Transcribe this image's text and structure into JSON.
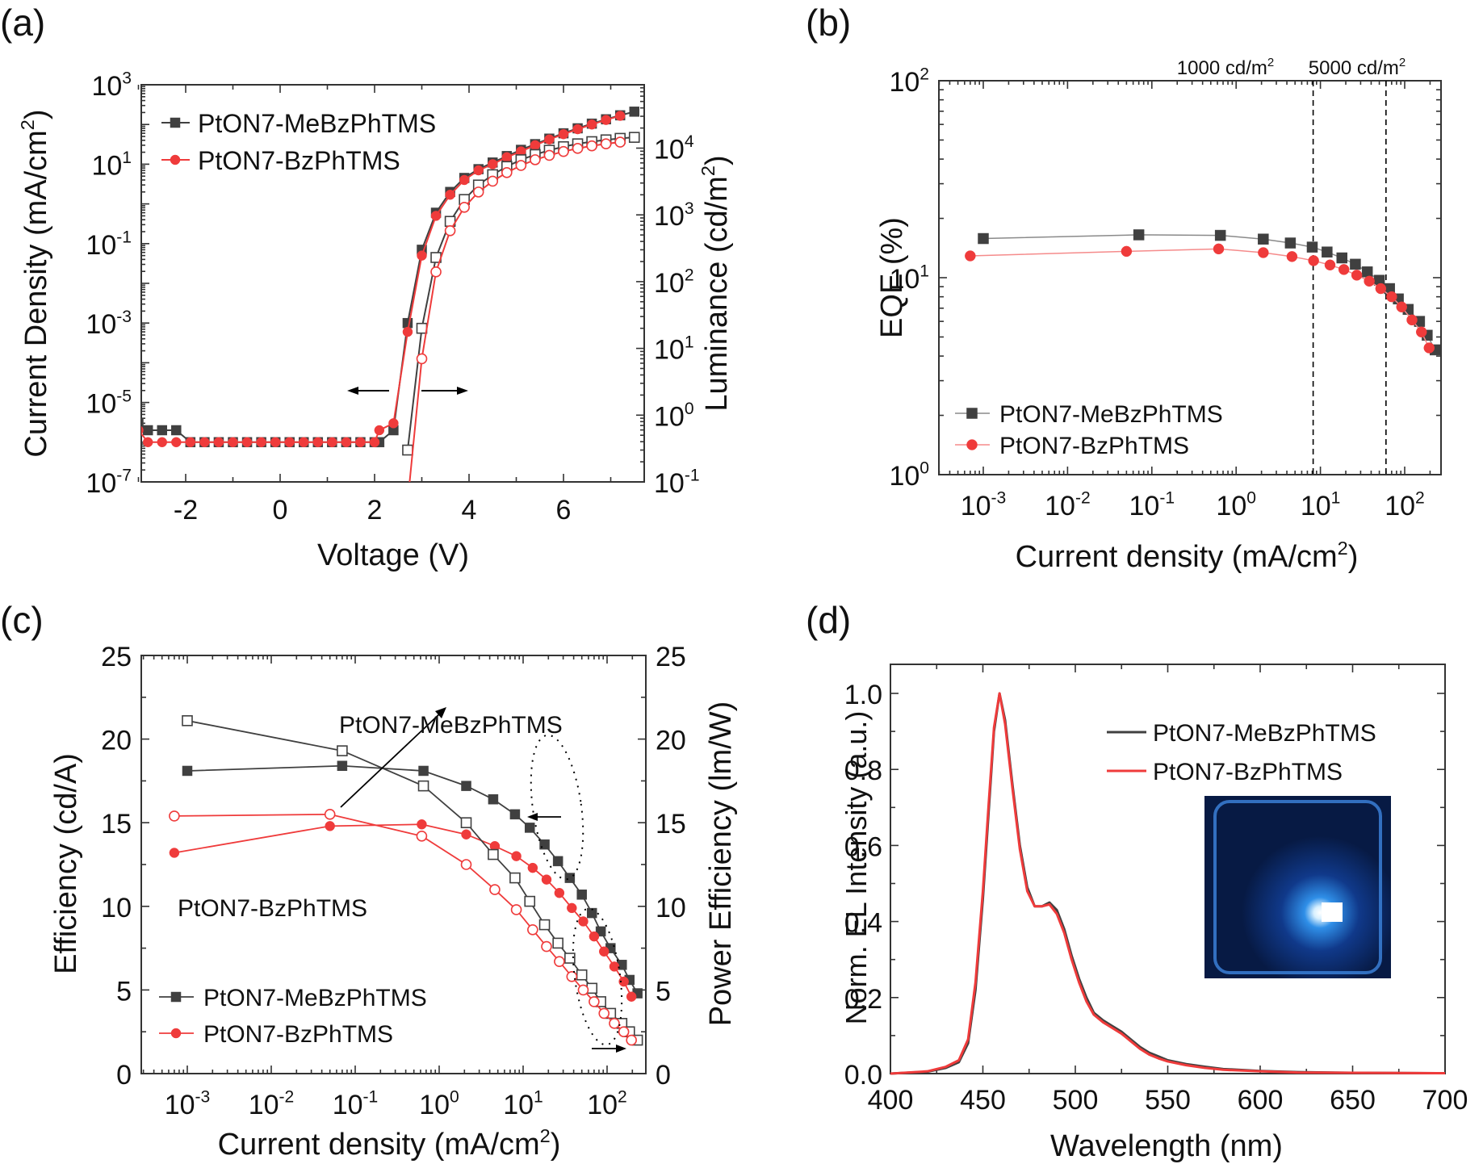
{
  "colors": {
    "black_series": "#404040",
    "red_series": "#ef3b3b",
    "axis": "#333333"
  },
  "chart_data": [
    {
      "panel": "(a)",
      "type": "line",
      "title": "",
      "xlabel": "Voltage (V)",
      "ylabel": "Current Density (mA/cm2)",
      "ylabel_right": "Luminance (cd/m2)",
      "xlim": [
        -3,
        7.7
      ],
      "ylim": [
        1e-07,
        1000.0
      ],
      "ylim_right": [
        0.1,
        100000.0
      ],
      "yscale": "log",
      "xticks": [
        -2,
        0,
        2,
        4,
        6
      ],
      "yticks": [
        {
          "base": "10",
          "exp": "3"
        },
        {
          "base": "10",
          "exp": "1"
        },
        {
          "base": "10",
          "exp": "-1"
        },
        {
          "base": "10",
          "exp": "-3"
        },
        {
          "base": "10",
          "exp": "-5"
        },
        {
          "base": "10",
          "exp": "-7"
        }
      ],
      "yticks_right": [
        {
          "base": "10",
          "exp": "4"
        },
        {
          "base": "10",
          "exp": "3"
        },
        {
          "base": "10",
          "exp": "2"
        },
        {
          "base": "10",
          "exp": "1"
        },
        {
          "base": "10",
          "exp": "0"
        },
        {
          "base": "10",
          "exp": "-1"
        }
      ],
      "legend": [
        "PtON7-MeBzPhTMS",
        "PtON7-BzPhTMS"
      ],
      "legend_position": "top-left",
      "annotations": [
        "left arrow: current density axis",
        "right arrow: luminance axis"
      ],
      "series": [
        {
          "name": "PtON7-MeBzPhTMS J",
          "axis": "left",
          "marker": "square-filled",
          "color": "black",
          "x": [
            -3,
            -2.8,
            -2.5,
            -2.2,
            -1.9,
            -1.6,
            -1.3,
            -1.0,
            -0.7,
            -0.4,
            -0.1,
            0.2,
            0.5,
            0.8,
            1.1,
            1.4,
            1.7,
            2.0,
            2.1,
            2.4,
            2.7,
            3.0,
            3.3,
            3.6,
            3.9,
            4.2,
            4.5,
            4.8,
            5.1,
            5.4,
            5.7,
            6.0,
            6.3,
            6.6,
            6.9,
            7.2,
            7.5
          ],
          "y": [
            3e-06,
            2e-06,
            2e-06,
            2e-06,
            1e-06,
            1e-06,
            1e-06,
            1e-06,
            1e-06,
            1e-06,
            1e-06,
            1e-06,
            1e-06,
            1e-06,
            1e-06,
            1e-06,
            1e-06,
            1e-06,
            1e-06,
            2e-06,
            0.001,
            0.07,
            0.6,
            2.0,
            4.5,
            7.5,
            11,
            16,
            23,
            32,
            44,
            60,
            80,
            105,
            135,
            170,
            210
          ]
        },
        {
          "name": "PtON7-BzPhTMS J",
          "axis": "left",
          "marker": "circle-filled",
          "color": "red",
          "x": [
            -3,
            -2.8,
            -2.5,
            -2.2,
            -1.9,
            -1.6,
            -1.3,
            -1.0,
            -0.7,
            -0.4,
            -0.1,
            0.2,
            0.5,
            0.8,
            1.1,
            1.4,
            1.7,
            2.0,
            2.1,
            2.4,
            2.7,
            3.0,
            3.3,
            3.6,
            3.9,
            4.2,
            4.5,
            4.8,
            5.1,
            5.4,
            5.7,
            6.0,
            6.3,
            6.6,
            6.9,
            7.2
          ],
          "y": [
            2e-06,
            1e-06,
            1e-06,
            1e-06,
            1e-06,
            1e-06,
            1e-06,
            1e-06,
            1e-06,
            1e-06,
            1e-06,
            1e-06,
            1e-06,
            1e-06,
            1e-06,
            1e-06,
            1e-06,
            1e-06,
            2e-06,
            3e-06,
            0.0006,
            0.05,
            0.5,
            1.7,
            4.0,
            7.0,
            10,
            15,
            21,
            30,
            42,
            57,
            76,
            100,
            130,
            165
          ]
        },
        {
          "name": "PtON7-MeBzPhTMS L",
          "axis": "right",
          "marker": "square-open",
          "color": "black",
          "x": [
            2.7,
            3.0,
            3.3,
            3.6,
            3.9,
            4.2,
            4.5,
            4.8,
            5.1,
            5.4,
            5.7,
            6.0,
            6.3,
            6.6,
            6.9,
            7.2,
            7.5
          ],
          "y": [
            0.3,
            20,
            230,
            800,
            1700,
            2800,
            4000,
            5300,
            6700,
            8000,
            9300,
            10500,
            11600,
            12500,
            13300,
            14000,
            14500
          ]
        },
        {
          "name": "PtON7-BzPhTMS L",
          "axis": "right",
          "marker": "circle-open",
          "color": "red",
          "x": [
            2.7,
            3.0,
            3.3,
            3.6,
            3.9,
            4.2,
            4.5,
            4.8,
            5.1,
            5.4,
            5.7,
            6.0,
            6.3,
            6.6,
            6.9,
            7.2
          ],
          "y": [
            0.05,
            7,
            140,
            580,
            1300,
            2200,
            3200,
            4300,
            5500,
            6700,
            7800,
            8900,
            9900,
            10800,
            11600,
            12300
          ]
        }
      ]
    },
    {
      "panel": "(b)",
      "type": "scatter",
      "xlabel": "Current density (mA/cm2)",
      "ylabel": "EQE (%)",
      "xscale": "log",
      "yscale": "log",
      "xlim": [
        0.0003,
        270
      ],
      "ylim": [
        1,
        100
      ],
      "xticks": [
        {
          "base": "10",
          "exp": "-3"
        },
        {
          "base": "10",
          "exp": "-2"
        },
        {
          "base": "10",
          "exp": "-1"
        },
        {
          "base": "10",
          "exp": "0"
        },
        {
          "base": "10",
          "exp": "1"
        },
        {
          "base": "10",
          "exp": "2"
        }
      ],
      "yticks": [
        {
          "base": "10",
          "exp": "2"
        },
        {
          "base": "10",
          "exp": "1"
        },
        {
          "base": "10",
          "exp": "0"
        }
      ],
      "reference_lines": [
        {
          "x": 8.2,
          "label": "1000 cd/m",
          "sup": "2"
        },
        {
          "x": 60,
          "label": "5000 cd/m",
          "sup": "2"
        }
      ],
      "legend": [
        "PtON7-MeBzPhTMS",
        "PtON7-BzPhTMS"
      ],
      "legend_position": "bottom-left",
      "series": [
        {
          "name": "PtON7-MeBzPhTMS",
          "marker": "square-filled",
          "color": "black",
          "x": [
            0.001,
            0.07,
            0.65,
            2.1,
            4.4,
            8.0,
            12,
            18,
            26,
            36,
            50,
            66,
            84,
            110,
            150,
            185,
            230
          ],
          "y": [
            15.8,
            16.5,
            16.4,
            15.7,
            15.0,
            14.3,
            13.5,
            12.6,
            11.7,
            10.7,
            9.7,
            8.8,
            7.8,
            6.9,
            6.0,
            5.1,
            4.3
          ]
        },
        {
          "name": "PtON7-BzPhTMS",
          "marker": "circle-filled",
          "color": "red",
          "x": [
            0.0007,
            0.05,
            0.62,
            2.1,
            4.6,
            8.3,
            13,
            19,
            27,
            38,
            52,
            70,
            92,
            122,
            158,
            195
          ],
          "y": [
            12.9,
            13.6,
            14.0,
            13.4,
            12.8,
            12.2,
            11.6,
            11.0,
            10.3,
            9.6,
            8.8,
            8.0,
            7.1,
            6.1,
            5.3,
            4.4
          ]
        }
      ]
    },
    {
      "panel": "(c)",
      "type": "line",
      "xlabel": "Current density (mA/cm2)",
      "ylabel": "Efficiency (cd/A)",
      "ylabel_right": "Power Efficiency (lm/W)",
      "xscale": "log",
      "xlim": [
        0.0003,
        270
      ],
      "ylim": [
        0,
        25
      ],
      "ylim_right": [
        0,
        25
      ],
      "xticks": [
        {
          "base": "10",
          "exp": "-3"
        },
        {
          "base": "10",
          "exp": "-2"
        },
        {
          "base": "10",
          "exp": "-1"
        },
        {
          "base": "10",
          "exp": "0"
        },
        {
          "base": "10",
          "exp": "1"
        },
        {
          "base": "10",
          "exp": "2"
        }
      ],
      "yticks": [
        "0",
        "5",
        "10",
        "15",
        "20",
        "25"
      ],
      "yticks_right": [
        "0",
        "5",
        "10",
        "15",
        "20",
        "25"
      ],
      "legend": [
        "PtON7-MeBzPhTMS",
        "PtON7-BzPhTMS"
      ],
      "legend_position": "bottom-left",
      "annotations": [
        {
          "text": "PtON7-MeBzPhTMS",
          "type": "label-top"
        },
        {
          "text": "PtON7-BzPhTMS",
          "type": "label-bottom"
        }
      ],
      "series": [
        {
          "name": "PtON7-MeBzPhTMS CE",
          "axis": "left",
          "marker": "square-filled",
          "color": "black",
          "x": [
            0.001,
            0.07,
            0.65,
            2.1,
            4.4,
            8.0,
            12,
            18,
            26,
            36,
            50,
            66,
            84,
            110,
            150,
            185,
            230
          ],
          "y": [
            18.1,
            18.4,
            18.1,
            17.2,
            16.4,
            15.5,
            14.7,
            13.7,
            12.7,
            11.7,
            10.7,
            9.6,
            8.5,
            7.5,
            6.5,
            5.6,
            4.8
          ]
        },
        {
          "name": "PtON7-BzPhTMS CE",
          "axis": "left",
          "marker": "circle-filled",
          "color": "red",
          "x": [
            0.0007,
            0.05,
            0.62,
            2.1,
            4.6,
            8.3,
            13,
            19,
            27,
            38,
            52,
            70,
            92,
            122,
            158,
            195
          ],
          "y": [
            13.2,
            14.8,
            14.9,
            14.3,
            13.6,
            13.0,
            12.3,
            11.6,
            10.8,
            9.9,
            9.1,
            8.2,
            7.3,
            6.4,
            5.5,
            4.6
          ]
        },
        {
          "name": "PtON7-MeBzPhTMS PE",
          "axis": "right",
          "marker": "square-open",
          "color": "black",
          "x": [
            0.001,
            0.07,
            0.65,
            2.1,
            4.4,
            8.0,
            12,
            18,
            26,
            36,
            50,
            66,
            84,
            110,
            150,
            185,
            230
          ],
          "y": [
            21.1,
            19.3,
            17.2,
            15.0,
            13.1,
            11.7,
            10.3,
            8.9,
            7.8,
            6.9,
            5.9,
            5.1,
            4.3,
            3.6,
            3.0,
            2.5,
            2.0
          ]
        },
        {
          "name": "PtON7-BzPhTMS PE",
          "axis": "right",
          "marker": "circle-open",
          "color": "red",
          "x": [
            0.0007,
            0.05,
            0.62,
            2.1,
            4.6,
            8.3,
            13,
            19,
            27,
            38,
            52,
            70,
            92,
            122,
            158,
            195
          ],
          "y": [
            15.4,
            15.5,
            14.2,
            12.5,
            11.0,
            9.8,
            8.6,
            7.6,
            6.7,
            5.8,
            5.0,
            4.3,
            3.6,
            3.0,
            2.5,
            2.0
          ]
        }
      ]
    },
    {
      "panel": "(d)",
      "type": "line",
      "xlabel": "Wavelength (nm)",
      "ylabel": "Norm. EL Intensity (a.u.)",
      "xlim": [
        400,
        700
      ],
      "ylim": [
        0,
        1.08
      ],
      "xticks": [
        "400",
        "450",
        "500",
        "550",
        "600",
        "650",
        "700"
      ],
      "yticks": [
        "0.0",
        "0.2",
        "0.4",
        "0.6",
        "0.8",
        "1.0"
      ],
      "legend": [
        "PtON7-MeBzPhTMS",
        "PtON7-BzPhTMS"
      ],
      "legend_position": "top-right",
      "inset": "photo of blue-emitting OLED device",
      "series": [
        {
          "name": "PtON7-MeBzPhTMS",
          "color": "black",
          "x": [
            400,
            420,
            430,
            437,
            442,
            446,
            450,
            453,
            456,
            459,
            462,
            466,
            470,
            474,
            478,
            482,
            486,
            490,
            494,
            498,
            502,
            506,
            510,
            515,
            520,
            525,
            530,
            535,
            540,
            545,
            550,
            560,
            570,
            580,
            600,
            620,
            650,
            700
          ],
          "y": [
            0.0,
            0.005,
            0.015,
            0.03,
            0.08,
            0.22,
            0.46,
            0.68,
            0.9,
            1.0,
            0.93,
            0.76,
            0.6,
            0.49,
            0.44,
            0.44,
            0.45,
            0.43,
            0.38,
            0.31,
            0.25,
            0.2,
            0.16,
            0.14,
            0.125,
            0.11,
            0.09,
            0.07,
            0.055,
            0.045,
            0.035,
            0.025,
            0.018,
            0.012,
            0.007,
            0.004,
            0.002,
            0.001
          ]
        },
        {
          "name": "PtON7-BzPhTMS",
          "color": "red",
          "x": [
            400,
            420,
            430,
            437,
            442,
            446,
            450,
            453,
            456,
            459,
            462,
            466,
            470,
            474,
            478,
            482,
            486,
            490,
            494,
            498,
            502,
            506,
            510,
            515,
            520,
            525,
            530,
            535,
            540,
            545,
            550,
            560,
            570,
            580,
            600,
            620,
            650,
            700
          ],
          "y": [
            0.0,
            0.006,
            0.018,
            0.035,
            0.09,
            0.24,
            0.48,
            0.7,
            0.91,
            1.0,
            0.92,
            0.75,
            0.59,
            0.48,
            0.44,
            0.44,
            0.445,
            0.42,
            0.37,
            0.3,
            0.24,
            0.19,
            0.155,
            0.135,
            0.12,
            0.105,
            0.085,
            0.065,
            0.05,
            0.04,
            0.032,
            0.022,
            0.015,
            0.01,
            0.006,
            0.003,
            0.002,
            0.001
          ]
        }
      ]
    }
  ]
}
